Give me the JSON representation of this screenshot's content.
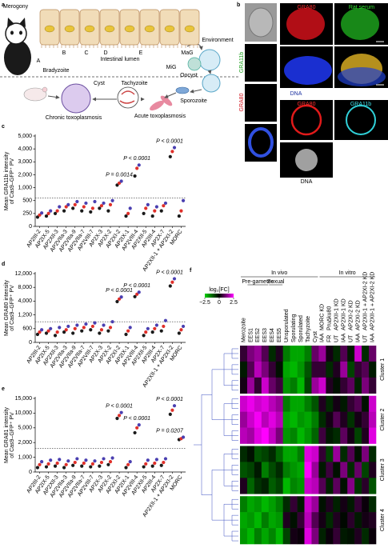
{
  "panel_a": {
    "panel": "a",
    "labels": [
      "Merogony",
      "A",
      "B",
      "C",
      "D",
      "E",
      "Intestinal lumen",
      "MiG",
      "MaG",
      "Bradyzoite",
      "Environment",
      "Oocyst",
      "Sporozoite",
      "Tachyzoite",
      "Cyst",
      "Chronic toxoplasmosis",
      "Acute toxoplasmosis"
    ]
  },
  "panel_b": {
    "panel": "b",
    "labels": [
      "GRA11b",
      "GRA80",
      "GRA80",
      "Rat serum",
      "DNA",
      "GRA80",
      "GRA11b",
      "DNA"
    ]
  },
  "chart_data": [
    {
      "panel": "c",
      "type": "dot",
      "ylabel": [
        "Mean GRA11b intensity",
        "of Cas9–GFP⁺ PV"
      ],
      "categories": [
        "AP2III-2",
        "AP2IX-5",
        "AP2XII-3",
        "AP2VIIa-3",
        "AP2VIIa-9",
        "AP2VIIa-7",
        "AP2VIII-7",
        "AP2X-3",
        "AP2X-2",
        "AP2XI-2",
        "AP2IX-1",
        "AP2VIII-4",
        "AP2XII-5",
        "AP2III-4",
        "AP2X-7",
        "AP2XII-1 + AP2XI-2",
        "MORC"
      ],
      "values": [
        [
          180,
          220,
          260
        ],
        [
          200,
          250,
          300
        ],
        [
          250,
          300,
          380
        ],
        [
          300,
          380,
          420
        ],
        [
          350,
          420,
          480
        ],
        [
          300,
          380,
          450
        ],
        [
          280,
          350,
          480
        ],
        [
          350,
          400,
          450
        ],
        [
          300,
          420,
          500
        ],
        [
          1200,
          1350,
          1500
        ],
        [
          200,
          250,
          350
        ],
        [
          1900,
          2500,
          2750
        ],
        [
          250,
          350,
          420
        ],
        [
          200,
          300,
          380
        ],
        [
          300,
          400,
          450
        ],
        [
          3400,
          3800,
          4100
        ],
        [
          200,
          300,
          500
        ]
      ],
      "replicate_colors": [
        "#1a1a1a",
        "#e0302a",
        "#4a3fb0"
      ],
      "ylim": [
        0,
        5000
      ],
      "yticks": [
        0,
        250,
        500,
        {
          "value": 1000,
          "label": "1,000"
        },
        {
          "value": 2000,
          "label": "2,000"
        },
        {
          "value": 3000,
          "label": "3,000"
        },
        {
          "value": 4000,
          "label": "4,000"
        },
        {
          "value": 5000,
          "label": "5,000"
        }
      ],
      "threshold": 600,
      "annotations": [
        {
          "label": "P = 0.0014",
          "x": "AP2XI-2"
        },
        {
          "label": "P < 0.0001",
          "x": "AP2VIII-4"
        },
        {
          "label": "P < 0.0001",
          "x": "AP2XII-1 + AP2XI-2"
        }
      ]
    },
    {
      "panel": "d",
      "type": "dot",
      "ylabel": [
        "Mean GRA80 intensity",
        "of Cas9–GFP⁺ PV"
      ],
      "categories": [
        "AP2III-2",
        "AP2IX-5",
        "AP2XII-3",
        "AP2VIIa-3",
        "AP2VIIa-9",
        "AP2VIIa-7",
        "AP2VIII-7",
        "AP2X-3",
        "AP2X-2",
        "AP2XI-2",
        "AP2IX-1",
        "AP2VIII-4",
        "AP2XII-5",
        "AP2III-4",
        "AP2X-7",
        "AP2XII-1 + AP2XI-2",
        "MORC"
      ],
      "values": [
        [
          350,
          450,
          550
        ],
        [
          400,
          500,
          600
        ],
        [
          300,
          450,
          650
        ],
        [
          450,
          550,
          700
        ],
        [
          400,
          600,
          750
        ],
        [
          500,
          650,
          800
        ],
        [
          550,
          700,
          850
        ],
        [
          400,
          550,
          750
        ],
        [
          500,
          650,
          900
        ],
        [
          3900,
          4600,
          5200
        ],
        [
          350,
          500,
          650
        ],
        [
          5300,
          6000,
          6600
        ],
        [
          300,
          450,
          600
        ],
        [
          450,
          600,
          750
        ],
        [
          500,
          700,
          950
        ],
        [
          8400,
          9500,
          10500
        ],
        [
          400,
          550,
          700
        ]
      ],
      "replicate_colors": [
        "#1a1a1a",
        "#e0302a",
        "#4a3fb0"
      ],
      "ylim": [
        0,
        12000
      ],
      "yticks": [
        0,
        600,
        {
          "value": 1200,
          "label": "1,200"
        },
        {
          "value": 4000,
          "label": "4,000"
        },
        {
          "value": 8000,
          "label": "8,000"
        },
        {
          "value": 12000,
          "label": "12,000"
        }
      ],
      "threshold": 900,
      "annotations": [
        {
          "label": "P < 0.0001",
          "x": "AP2XI-2"
        },
        {
          "label": "P < 0.0001",
          "x": "AP2VIII-4"
        },
        {
          "label": "P < 0.0001",
          "x": "AP2XII-1 + AP2XI-2"
        }
      ]
    },
    {
      "panel": "e",
      "type": "dot",
      "ylabel": [
        "Mean GRA81 intensity",
        "of Cas9–GFP⁺ PV"
      ],
      "categories": [
        "AP2III-2",
        "AP2IX-5",
        "AP2XII-3",
        "AP2VIIa-3",
        "AP2VIIa-9",
        "AP2VIIa-7",
        "AP2VIII-7",
        "AP2X-3",
        "AP2X-2",
        "AP2XI-2",
        "AP2IX-1",
        "AP2VIII-4",
        "AP2XII-5",
        "AP2III-4",
        "AP2X-7",
        "AP2XII-1 + AP2XI-2",
        "MORC"
      ],
      "values": [
        [
          300,
          500,
          700
        ],
        [
          350,
          550,
          800
        ],
        [
          400,
          600,
          850
        ],
        [
          300,
          500,
          750
        ],
        [
          450,
          650,
          900
        ],
        [
          400,
          600,
          800
        ],
        [
          350,
          550,
          750
        ],
        [
          400,
          650,
          900
        ],
        [
          500,
          700,
          950
        ],
        [
          8200,
          9200,
          10200
        ],
        [
          300,
          500,
          700
        ],
        [
          4000,
          5000,
          6000
        ],
        [
          350,
          550,
          800
        ],
        [
          400,
          600,
          850
        ],
        [
          450,
          650,
          900
        ],
        [
          9600,
          11000,
          12500
        ],
        [
          2600,
          2800,
          3100
        ]
      ],
      "replicate_colors": [
        "#1a1a1a",
        "#e0302a",
        "#4a3fb0"
      ],
      "ylim": [
        0,
        15000
      ],
      "yticks": [
        0,
        {
          "value": 1000,
          "label": "1,000"
        },
        {
          "value": 2000,
          "label": "2,000"
        },
        {
          "value": 5000,
          "label": "5,000"
        },
        {
          "value": 10000,
          "label": "10,000"
        },
        {
          "value": 15000,
          "label": "15,000"
        }
      ],
      "threshold": 1600,
      "annotations": [
        {
          "label": "P < 0.0001",
          "x": "AP2XI-2"
        },
        {
          "label": "P < 0.0001",
          "x": "AP2VIII-4"
        },
        {
          "label": "P < 0.0001",
          "x": "AP2XII-1 + AP2XI-2"
        },
        {
          "label": "P = 0.0207",
          "x": "MORC"
        }
      ]
    },
    {
      "panel": "f",
      "type": "heatmap",
      "headers": [
        "In vivo",
        "In vitro"
      ],
      "groups": [
        "Pre-gametes",
        "Sexual"
      ],
      "columns": [
        "Merozoite",
        "EES1",
        "EES2",
        "EES3",
        "EES4",
        "EES5",
        "Unsporulated",
        "Sporulating",
        "Sporulated",
        "Tachyzoite",
        "Cyst",
        "MORC KD",
        "Pru∆ku80",
        "AP2XII-1 KD",
        "AP2XII-1 KD",
        "AP2XI-2 KD",
        "AP2XI-2 KD",
        "AP2XII-1 + AP2XI-2 KD",
        "AP2XII-1 + AP2XI-2 KD"
      ],
      "column_conditions": [
        null,
        null,
        null,
        null,
        null,
        null,
        null,
        null,
        null,
        null,
        null,
        "IAA",
        "FR",
        "UT",
        "IAA",
        "UT",
        "IAA",
        "UT",
        "IAA"
      ],
      "colorbar_title": "log₂[FC]",
      "clim": [
        -2.5,
        2.5
      ],
      "cticks": [
        {
          "value": -2.5,
          "label": "−2.5"
        },
        0,
        2.5
      ],
      "color_scale": [
        "#00d000",
        "#000000",
        "#ff00ff"
      ],
      "clusters": [
        {
          "name": "Cluster 1",
          "values": [
            [
              0.5,
              1.2,
              1.5,
              0.8,
              -0.5,
              0.3,
              -1.5,
              -2,
              -2,
              -1.5,
              1.0,
              1.5,
              0.2,
              -0.5,
              0.8,
              -0.3,
              2.0,
              -0.5,
              1.0
            ],
            [
              -0.3,
              0.8,
              1.8,
              1.2,
              0.5,
              -0.2,
              -2,
              -2.2,
              -1.8,
              -1.0,
              0.5,
              0.5,
              -0.5,
              0.3,
              1.5,
              -0.8,
              0.5,
              0.8,
              -0.3
            ],
            [
              0.2,
              1.5,
              0.5,
              2.0,
              1.0,
              0.6,
              -1.8,
              -1.5,
              -2.2,
              -0.8,
              1.5,
              2.0,
              0.3,
              -0.2,
              0.5,
              0.9,
              -0.4,
              1.2,
              0.5
            ]
          ]
        },
        {
          "name": "Cluster 2",
          "values": [
            [
              2.0,
              2.3,
              2.0,
              2.2,
              1.8,
              1.5,
              -1.5,
              -2.0,
              -2.0,
              -1.5,
              -1.0,
              0.3,
              -0.5,
              0.2,
              -0.3,
              0.5,
              0.8,
              -0.2,
              2.0
            ],
            [
              1.5,
              2.0,
              2.4,
              1.8,
              2.2,
              1.8,
              -2.0,
              -2.2,
              -1.8,
              -2.0,
              -1.5,
              -0.5,
              0.2,
              0.8,
              0.3,
              -0.6,
              0.2,
              0.5,
              1.8
            ],
            [
              1.8,
              1.6,
              2.2,
              2.5,
              1.9,
              1.2,
              -1.8,
              -1.6,
              -2.2,
              -1.8,
              -1.2,
              0.6,
              -0.3,
              -0.5,
              0.9,
              0.2,
              -0.8,
              0.3,
              2.2
            ]
          ]
        },
        {
          "name": "Cluster 3",
          "values": [
            [
              -0.5,
              -0.2,
              -1.0,
              -0.8,
              -0.5,
              -1.2,
              -2.0,
              -2.0,
              -1.5,
              2.2,
              2.0,
              0.5,
              -0.8,
              1.5,
              -0.5,
              0.8,
              -0.2,
              1.2,
              -0.5
            ],
            [
              -1.0,
              -0.8,
              -0.3,
              -1.5,
              -0.9,
              -0.5,
              -1.5,
              -1.8,
              -2.0,
              2.5,
              1.5,
              -0.3,
              0.6,
              -0.2,
              1.2,
              -0.5,
              1.0,
              -0.8,
              0.3
            ],
            [
              0.3,
              -1.2,
              -0.6,
              -0.4,
              -1.1,
              -0.8,
              -2.2,
              -1.6,
              -1.8,
              2.0,
              1.8,
              0.8,
              -0.4,
              0.9,
              -0.2,
              1.3,
              -0.6,
              0.4,
              -1.0
            ]
          ]
        },
        {
          "name": "Cluster 4",
          "values": [
            [
              -1.5,
              -2.0,
              -1.8,
              -2.2,
              -1.9,
              -1.5,
              -0.5,
              0.5,
              -0.3,
              2.0,
              1.5,
              -0.2,
              0.3,
              -0.4,
              0.2,
              -0.3,
              0.5,
              0.1,
              -0.5
            ],
            [
              -2.0,
              -1.8,
              -2.2,
              -1.5,
              -2.0,
              -1.8,
              0.3,
              -0.2,
              0.5,
              1.8,
              0.8,
              0.2,
              -0.5,
              0.3,
              -0.1,
              0.4,
              -0.3,
              0.2,
              0.3
            ],
            [
              -1.8,
              -2.2,
              -1.5,
              -2.0,
              -1.6,
              -2.2,
              -0.8,
              0.2,
              0.1,
              2.2,
              1.2,
              -0.4,
              0.1,
              0.5,
              -0.3,
              -0.2,
              0.3,
              -0.5,
              0.1
            ]
          ]
        }
      ]
    }
  ]
}
